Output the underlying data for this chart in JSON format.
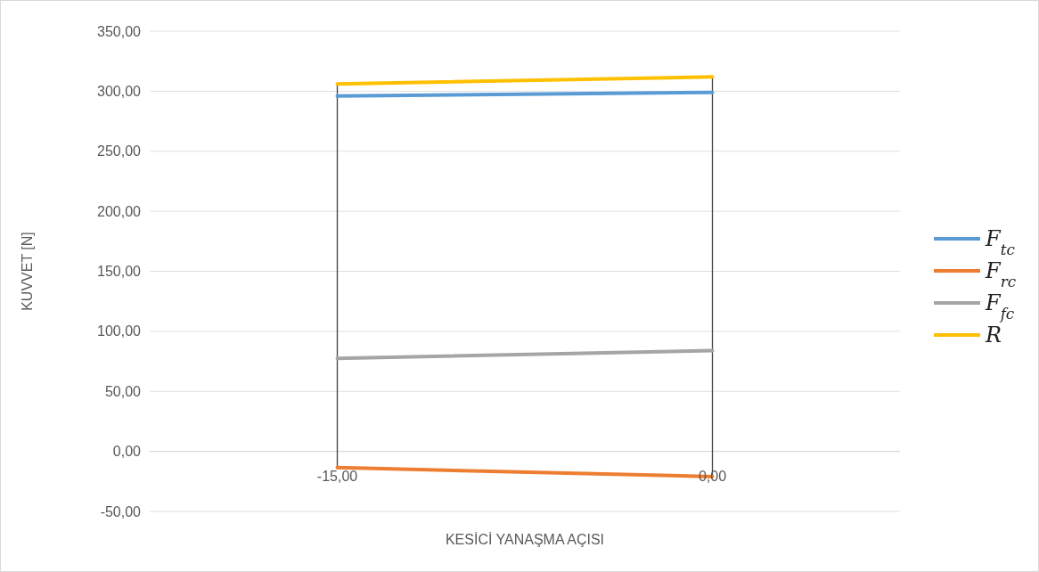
{
  "chart_data": {
    "type": "line",
    "xlabel": "KESİCİ YANAŞMA AÇISI",
    "ylabel": "KUVVET [N]",
    "categories": [
      "-15,00",
      "0,00"
    ],
    "series": [
      {
        "name": "F$_{tc}$",
        "color": "#5b9bd5",
        "values": [
          296,
          299
        ]
      },
      {
        "name": "F$_{rc}$",
        "color": "#ed7d31",
        "values": [
          -13.5,
          -21
        ]
      },
      {
        "name": "F$_{fc}$",
        "color": "#a5a5a5",
        "values": [
          77.5,
          84
        ]
      },
      {
        "name": "R",
        "color": "#ffc000",
        "values": [
          306,
          312
        ]
      }
    ],
    "ylim": [
      -50,
      350
    ],
    "yticks": [
      {
        "value": -50,
        "label": "-50,00"
      },
      {
        "value": 0,
        "label": "0,00"
      },
      {
        "value": 50,
        "label": "50,00"
      },
      {
        "value": 100,
        "label": "100,00"
      },
      {
        "value": 150,
        "label": "150,00"
      },
      {
        "value": 200,
        "label": "200,00"
      },
      {
        "value": 250,
        "label": "250,00"
      },
      {
        "value": 300,
        "label": "300,00"
      },
      {
        "value": 350,
        "label": "350,00"
      }
    ],
    "grid": true,
    "legend": "right"
  }
}
